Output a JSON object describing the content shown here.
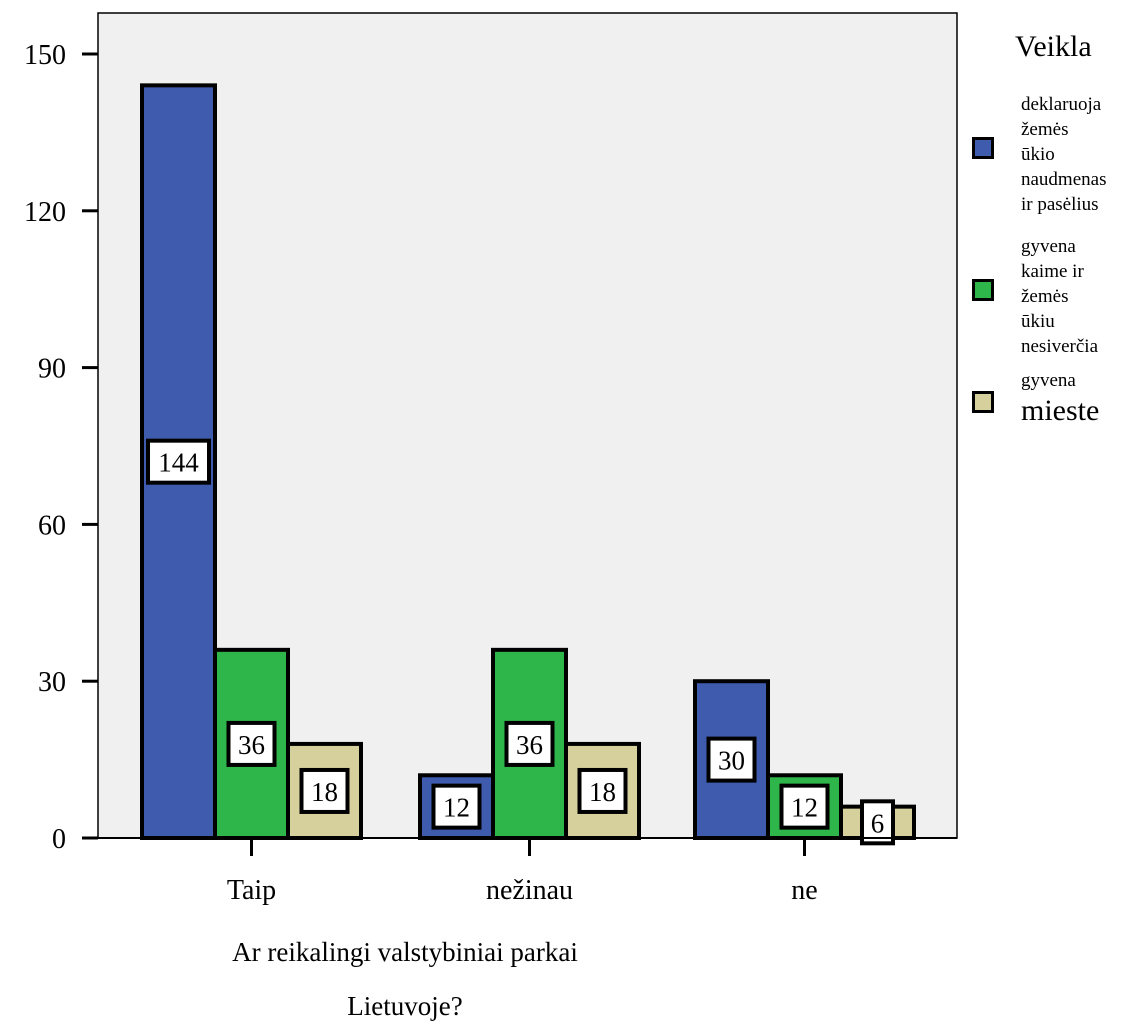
{
  "chart_data": {
    "type": "bar",
    "categories": [
      "Taip",
      "nežinau",
      "ne"
    ],
    "series": [
      {
        "name": "deklaruoja žemės ūkio naudmenas ir pasėlius",
        "values": [
          144,
          12,
          30
        ],
        "color": "#3e5bae"
      },
      {
        "name": "gyvena kaime ir žemės ūkiu nesiverčia",
        "values": [
          36,
          36,
          12
        ],
        "color": "#2fb64a"
      },
      {
        "name": "gyvena mieste",
        "values": [
          18,
          18,
          6
        ],
        "color": "#d6d09c"
      }
    ],
    "data_labels": [
      [
        "144",
        "12",
        "30"
      ],
      [
        "36",
        "36",
        "12"
      ],
      [
        "18",
        "18",
        "6"
      ]
    ],
    "yticks": [
      "0",
      "30",
      "60",
      "90",
      "120",
      "150"
    ],
    "ylim": [
      0,
      150
    ],
    "xlabel_lines": [
      "Ar reikalingi valstybiniai parkai",
      "Lietuvoje?"
    ],
    "legend_title": "Veikla",
    "legend_position": "right",
    "plot_background": "#f0f0f0",
    "grid": false
  },
  "legend": {
    "title": "Veikla",
    "items": [
      {
        "lines": [
          "deklaruoja",
          "žemės ūkio",
          "naudmenas",
          "ir pasėlius"
        ],
        "color": "#3e5bae"
      },
      {
        "lines": [
          "gyvena",
          "kaime ir",
          "žemės ūkiu",
          "nesiverčia"
        ],
        "color": "#2fb64a"
      },
      {
        "lines": [
          "gyvena",
          "mieste"
        ],
        "color": "#d6d09c"
      }
    ]
  }
}
